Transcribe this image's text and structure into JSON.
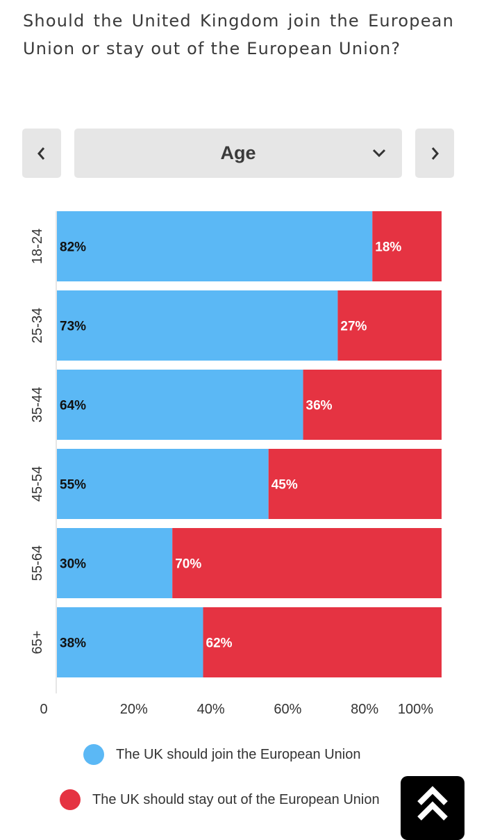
{
  "question": "Should the United Kingdom join the European Union or stay out of the European Union?",
  "selector": {
    "prev_icon": "chevron-left-icon",
    "label": "Age",
    "dropdown_icon": "chevron-down-icon",
    "next_icon": "chevron-right-icon"
  },
  "colors": {
    "join": "#5bb8f5",
    "stay": "#e53342"
  },
  "chart_data": {
    "type": "bar",
    "orientation": "horizontal",
    "stacked": true,
    "categories": [
      "18-24",
      "25-34",
      "35-44",
      "45-54",
      "55-64",
      "65+"
    ],
    "series": [
      {
        "name": "The UK should join the European Union",
        "values": [
          82,
          73,
          64,
          55,
          30,
          38
        ],
        "labels": [
          "82%",
          "73%",
          "64%",
          "55%",
          "30%",
          "38%"
        ]
      },
      {
        "name": "The UK should stay out of the European Union",
        "values": [
          18,
          27,
          36,
          45,
          70,
          62
        ],
        "labels": [
          "18%",
          "27%",
          "36%",
          "45%",
          "70%",
          "62%"
        ]
      }
    ],
    "x_ticks": [
      "0",
      "20%",
      "40%",
      "60%",
      "80%",
      "100%"
    ],
    "xlim": [
      0,
      100
    ],
    "legend_position": "bottom"
  },
  "scroll_top": {
    "icon": "double-chevron-up-icon"
  }
}
